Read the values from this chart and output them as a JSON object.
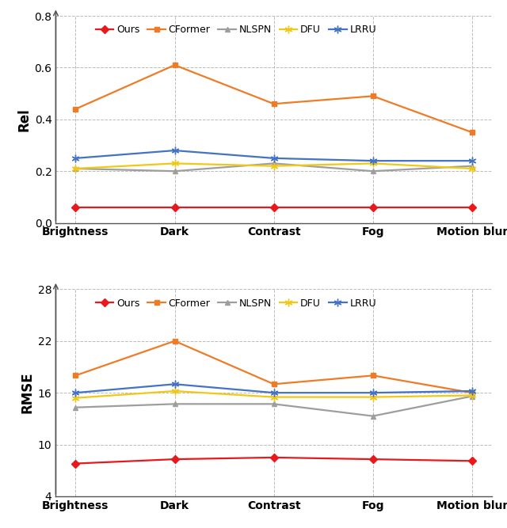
{
  "categories": [
    "Brightness",
    "Dark",
    "Contrast",
    "Fog",
    "Motion blur"
  ],
  "rel": {
    "Ours": [
      0.06,
      0.06,
      0.06,
      0.06,
      0.06
    ],
    "CFormer": [
      0.44,
      0.61,
      0.46,
      0.49,
      0.35
    ],
    "NLSPN": [
      0.21,
      0.2,
      0.23,
      0.2,
      0.22
    ],
    "DFU": [
      0.21,
      0.23,
      0.22,
      0.23,
      0.21
    ],
    "LRRU": [
      0.25,
      0.28,
      0.25,
      0.24,
      0.24
    ]
  },
  "rmse": {
    "Ours": [
      7.8,
      8.3,
      8.5,
      8.3,
      8.1
    ],
    "CFormer": [
      18.0,
      22.0,
      17.0,
      18.0,
      16.0
    ],
    "NLSPN": [
      14.3,
      14.7,
      14.7,
      13.3,
      15.6
    ],
    "DFU": [
      15.4,
      16.2,
      15.5,
      15.5,
      15.7
    ],
    "LRRU": [
      16.0,
      17.0,
      16.0,
      16.0,
      16.2
    ]
  },
  "colors": {
    "Ours": "#e8191c",
    "CFormer": "#f07b27",
    "NLSPN": "#9e9e9e",
    "DFU": "#f0c818",
    "LRRU": "#4472c4"
  },
  "marker_styles": {
    "Ours": {
      "marker": "D",
      "ms": 5
    },
    "CFormer": {
      "marker": "s",
      "ms": 5
    },
    "NLSPN": {
      "marker": "^",
      "ms": 5
    },
    "DFU": {
      "marker": "*",
      "ms": 7
    },
    "LRRU": {
      "marker": "*",
      "ms": 7
    }
  },
  "rel_ylim": [
    0.0,
    0.8
  ],
  "rel_yticks": [
    0.0,
    0.2,
    0.4,
    0.6,
    0.8
  ],
  "rmse_ylim": [
    4,
    28
  ],
  "rmse_yticks": [
    4,
    10,
    16,
    22,
    28
  ],
  "rel_ylabel": "Rel",
  "rmse_ylabel": "RMSE",
  "lw": 1.6
}
